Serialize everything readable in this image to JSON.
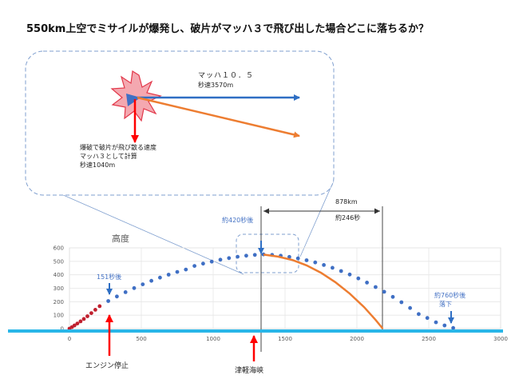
{
  "heading": "550km上空でミサイルが爆発し、破片がマッハ３で飛び出した場合どこに落ちるか？",
  "inset": {
    "mach_label": "マッハ１０．５",
    "speed_label": "秒速3570m",
    "note_lines": [
      "爆破で破片が飛び散る速度",
      "マッハ３として計算",
      "秒速1040m"
    ]
  },
  "annotations": {
    "t420": "約420秒後",
    "dist_km": "878km",
    "dist_sec": "約246秒",
    "t151": "151秒後",
    "t760a": "約760秒後",
    "t760b": "落下",
    "engine_stop": "エンジン停止",
    "tsugaru": "津軽海峡"
  },
  "colors": {
    "powered": "#c0202e",
    "ballistic": "#3f6fc4",
    "fragment": "#ed7d31",
    "ground": "#29b6e8",
    "arrow_red": "#ff0000",
    "arrow_blue": "#2f6fc4"
  },
  "chart_data": {
    "type": "scatter",
    "ylabel": "高度",
    "xlim": [
      0,
      3000
    ],
    "ylim": [
      0,
      600
    ],
    "xticks": [
      "0",
      "500",
      "1000",
      "1500",
      "2000",
      "2500",
      "3000"
    ],
    "yticks": [
      "0",
      "100",
      "200",
      "300",
      "400",
      "500",
      "600"
    ],
    "grid": true,
    "series": [
      {
        "role": "powered",
        "x": [
          0,
          17,
          35,
          55,
          77,
          100,
          125,
          152,
          180,
          210
        ],
        "y": [
          0,
          11,
          24,
          38,
          54,
          72,
          92,
          115,
          140,
          167
        ]
      },
      {
        "role": "ballistic",
        "x": [
          270,
          330,
          390,
          450,
          510,
          570,
          630,
          690,
          750,
          810,
          870,
          930,
          990,
          1050,
          1110,
          1170,
          1230,
          1290,
          1350,
          1410,
          1470,
          1530,
          1590,
          1650,
          1710,
          1770,
          1830,
          1890,
          1950,
          2010,
          2070,
          2130,
          2190,
          2250,
          2310,
          2370,
          2430,
          2490,
          2550,
          2610,
          2670
        ],
        "y": [
          205,
          239,
          271,
          301,
          329,
          355,
          379,
          401,
          421,
          439,
          466,
          483,
          498,
          512,
          524,
          534,
          542,
          548,
          551,
          548,
          542,
          533,
          522,
          508,
          492,
          473,
          452,
          428,
          402,
          373,
          342,
          309,
          274,
          236,
          196,
          153,
          108,
          79,
          47,
          24,
          5
        ]
      },
      {
        "role": "fragment",
        "x": [
          1350,
          1450,
          1550,
          1650,
          1750,
          1850,
          1950,
          2050,
          2130,
          2180
        ],
        "y": [
          550,
          535,
          510,
          470,
          415,
          345,
          260,
          160,
          65,
          0
        ]
      }
    ]
  }
}
